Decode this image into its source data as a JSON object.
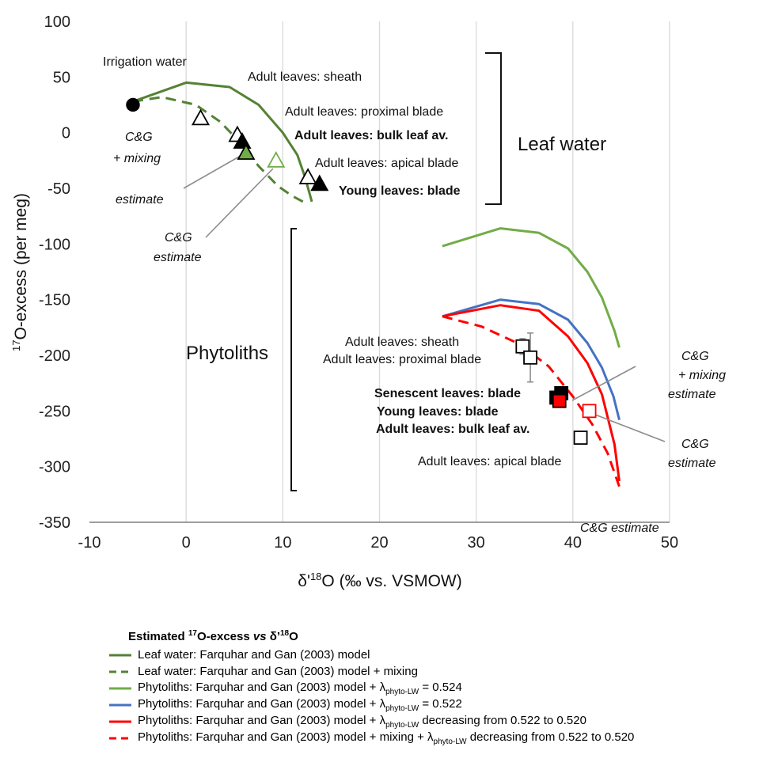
{
  "chart_data": {
    "type": "line",
    "xlabel": "δ'18O (‰ vs. VSMOW)",
    "ylabel": "17O-excess (per meg)",
    "xlim": [
      -10,
      50
    ],
    "ylim": [
      -350,
      100
    ],
    "x_ticks": [
      "-10",
      "0",
      "10",
      "20",
      "30",
      "40",
      "50"
    ],
    "y_ticks": [
      "100",
      "50",
      "0",
      "-50",
      "-100",
      "-150",
      "-200",
      "-250",
      "-300",
      "-350"
    ],
    "grid": "vertical",
    "colors": {
      "leaf_model": "#548235",
      "phyto_524": "#70ad47",
      "phyto_522": "#4472c4",
      "phyto_decreasing": "#ff0000",
      "marker_green": "#70ad47",
      "marker_red": "#ff0000"
    },
    "series": [
      {
        "name": "Leaf water: Farquhar and Gan (2003) model",
        "color": "#548235",
        "style": "solid",
        "x": [
          -5.5,
          0,
          4.5,
          7.5,
          10,
          11.5,
          12.3,
          13
        ],
        "y": [
          28,
          45,
          41,
          25,
          0,
          -20,
          -40,
          -62
        ]
      },
      {
        "name": "Leaf water: Farquhar and Gan (2003) model + mixing",
        "color": "#548235",
        "style": "dashed",
        "x": [
          -5.5,
          -2.5,
          1,
          3.5,
          5.5,
          7.5,
          9.5,
          11,
          12.3
        ],
        "y": [
          28,
          32,
          25,
          10,
          -8,
          -30,
          -48,
          -57,
          -63
        ]
      },
      {
        "name": "Phytoliths: Farquhar and Gan (2003) model + λphyto-LW = 0.524",
        "color": "#70ad47",
        "style": "solid",
        "x": [
          26.5,
          32.5,
          36.5,
          39.5,
          41.5,
          43,
          44.3,
          44.8
        ],
        "y": [
          -102,
          -86,
          -90,
          -104,
          -125,
          -148,
          -178,
          -193
        ]
      },
      {
        "name": "Phytoliths: Farquhar and Gan (2003) model + λphyto-LW = 0.522",
        "color": "#4472c4",
        "style": "solid",
        "x": [
          26.5,
          32.5,
          36.5,
          39.5,
          41.5,
          43,
          44.2,
          44.8
        ],
        "y": [
          -165,
          -150,
          -154,
          -168,
          -189,
          -211,
          -237,
          -258
        ]
      },
      {
        "name": "Phytoliths: Farquhar and Gan (2003) model + λphyto-LW decreasing from 0.522 to 0.520",
        "color": "#ff0000",
        "style": "solid",
        "x": [
          26.5,
          32.5,
          36.5,
          39.5,
          41.5,
          43,
          44.3,
          44.8
        ],
        "y": [
          -165,
          -155,
          -160,
          -183,
          -207,
          -235,
          -280,
          -313
        ]
      },
      {
        "name": "Phytoliths: Farquhar and Gan (2003) model + mixing + λphyto-LW decreasing from 0.522 to 0.520",
        "color": "#ff0000",
        "style": "dashed",
        "x": [
          26.5,
          30.5,
          34.5,
          37.5,
          40,
          42,
          43.6,
          44.8
        ],
        "y": [
          -165,
          -174,
          -190,
          -210,
          -237,
          -262,
          -288,
          -318
        ]
      }
    ],
    "points": [
      {
        "label": "Irrigation water",
        "x": -5.5,
        "y": 25,
        "marker": "circle",
        "fill": "#000000"
      },
      {
        "label": "Adult leaves: sheath",
        "x": 1.5,
        "y": 13,
        "marker": "triangle",
        "fill": "none"
      },
      {
        "label": "Adult leaves: proximal blade",
        "x": 5.3,
        "y": -2,
        "marker": "triangle",
        "fill": "none"
      },
      {
        "label": "Adult leaves: bulk leaf av.",
        "x": 5.8,
        "y": -8,
        "marker": "triangle",
        "fill": "#000000"
      },
      {
        "label": "C&G + mixing estimate",
        "x": 6.2,
        "y": -18,
        "marker": "triangle",
        "fill": "#70ad47"
      },
      {
        "label": "C&G estimate",
        "x": 9.3,
        "y": -25,
        "marker": "triangle",
        "fill": "none",
        "stroke": "#70ad47"
      },
      {
        "label": "Adult leaves: apical blade",
        "x": 12.6,
        "y": -40,
        "marker": "triangle",
        "fill": "none"
      },
      {
        "label": "Young leaves: blade",
        "x": 13.8,
        "y": -46,
        "marker": "triangle",
        "fill": "#000000"
      },
      {
        "label": "Adult leaves: sheath (phytolith)",
        "x": 34.8,
        "y": -192,
        "marker": "square",
        "fill": "none",
        "err": 7
      },
      {
        "label": "Adult leaves: proximal blade (phytolith)",
        "x": 35.6,
        "y": -202,
        "marker": "square",
        "fill": "none",
        "err": 22
      },
      {
        "label": "Senescent leaves: blade",
        "x": 38.8,
        "y": -234,
        "marker": "square",
        "fill": "#000000"
      },
      {
        "label": "Young leaves: blade (phytolith)",
        "x": 38.3,
        "y": -238,
        "marker": "square",
        "fill": "#000000"
      },
      {
        "label": "C&G + mixing estimate (phytolith)",
        "x": 38.6,
        "y": -241,
        "marker": "square",
        "fill": "#ff0000"
      },
      {
        "label": "C&G estimate (phytolith)",
        "x": 41.7,
        "y": -250,
        "marker": "square",
        "fill": "none",
        "stroke": "#ff0000"
      },
      {
        "label": "Adult leaves: apical blade (phytolith)",
        "x": 40.8,
        "y": -274,
        "marker": "square",
        "fill": "none"
      }
    ]
  },
  "annotations": {
    "irrigation": "Irrigation water",
    "lw_sheath": "Adult leaves: sheath",
    "lw_proximal": "Adult leaves: proximal blade",
    "lw_bulk": "Adult leaves: bulk leaf av.",
    "lw_apical": "Adult leaves: apical blade",
    "lw_young": "Young leaves: blade",
    "cg_mix_1": "C&G",
    "cg_mix_2": "+ mixing",
    "cg_mix_3": "estimate",
    "cg_1": "C&G",
    "cg_2": "estimate",
    "leaf_water": "Leaf water",
    "phytoliths": "Phytoliths",
    "ph_sheath": "Adult leaves: sheath",
    "ph_proximal": "Adult leaves: proximal blade",
    "ph_senescent": "Senescent leaves: blade",
    "ph_young": "Young leaves: blade",
    "ph_bulk": "Adult leaves: bulk leaf av.",
    "ph_apical": "Adult leaves: apical blade",
    "ph_cg_mix_1": "C&G",
    "ph_cg_mix_2": "+ mixing",
    "ph_cg_mix_3": "estimate",
    "ph_cg_1": "C&G",
    "ph_cg_2": "estimate",
    "cg_bottom": "C&G estimate"
  },
  "legend": {
    "title_pre": "Estimated ",
    "title_sup": "17",
    "title_mid": "O-excess ",
    "title_vs": "vs",
    "title_delta": " δ’",
    "title_sup2": "18",
    "title_end": "O",
    "items": [
      {
        "text": "Leaf water: Farquhar and Gan (2003) model",
        "sub": "",
        "tail": ""
      },
      {
        "text": "Leaf water: Farquhar and Gan (2003) model + mixing",
        "sub": "",
        "tail": ""
      },
      {
        "text": "Phytoliths: Farquhar and Gan (2003) model + λ",
        "sub": "phyto-LW",
        "tail": " = 0.524"
      },
      {
        "text": "Phytoliths: Farquhar and Gan (2003) model + λ",
        "sub": "phyto-LW",
        "tail": " = 0.522"
      },
      {
        "text": "Phytoliths: Farquhar and Gan (2003) model + λ",
        "sub": "phyto-LW",
        "tail": " decreasing from 0.522 to 0.520"
      },
      {
        "text": "Phytoliths: Farquhar and Gan (2003) model + mixing + λ",
        "sub": "phyto-LW",
        "tail": " decreasing from 0.522 to 0.520"
      }
    ]
  }
}
